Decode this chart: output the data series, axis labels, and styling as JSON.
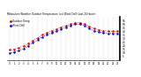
{
  "title": "Milwaukee Weather Outdoor Temperature (vs) Wind Chill (Last 24 Hours)",
  "temp": [
    14,
    15,
    17,
    20,
    23,
    27,
    31,
    35,
    38,
    41,
    43,
    46,
    48,
    50,
    52,
    52,
    50,
    47,
    44,
    42,
    41,
    40,
    40,
    40
  ],
  "windchill": [
    10,
    11,
    13,
    16,
    20,
    24,
    28,
    32,
    35,
    38,
    40,
    43,
    46,
    48,
    50,
    50,
    48,
    44,
    41,
    39,
    38,
    37,
    37,
    37
  ],
  "temp_color": "#dd0000",
  "windchill_color": "#0000cc",
  "bg_color": "#ffffff",
  "plot_bg": "#ffffff",
  "grid_color": "#888888",
  "ylim": [
    0,
    60
  ],
  "ytick_values": [
    5,
    10,
    15,
    20,
    25,
    30,
    35,
    40,
    45,
    50,
    55
  ],
  "ytick_labels": [
    "5",
    "10",
    "15",
    "20",
    "25",
    "30",
    "35",
    "40",
    "45",
    "50",
    "55"
  ],
  "hours": 24,
  "legend_temp": "Outdoor Temp",
  "legend_wc": "Wind Chill"
}
